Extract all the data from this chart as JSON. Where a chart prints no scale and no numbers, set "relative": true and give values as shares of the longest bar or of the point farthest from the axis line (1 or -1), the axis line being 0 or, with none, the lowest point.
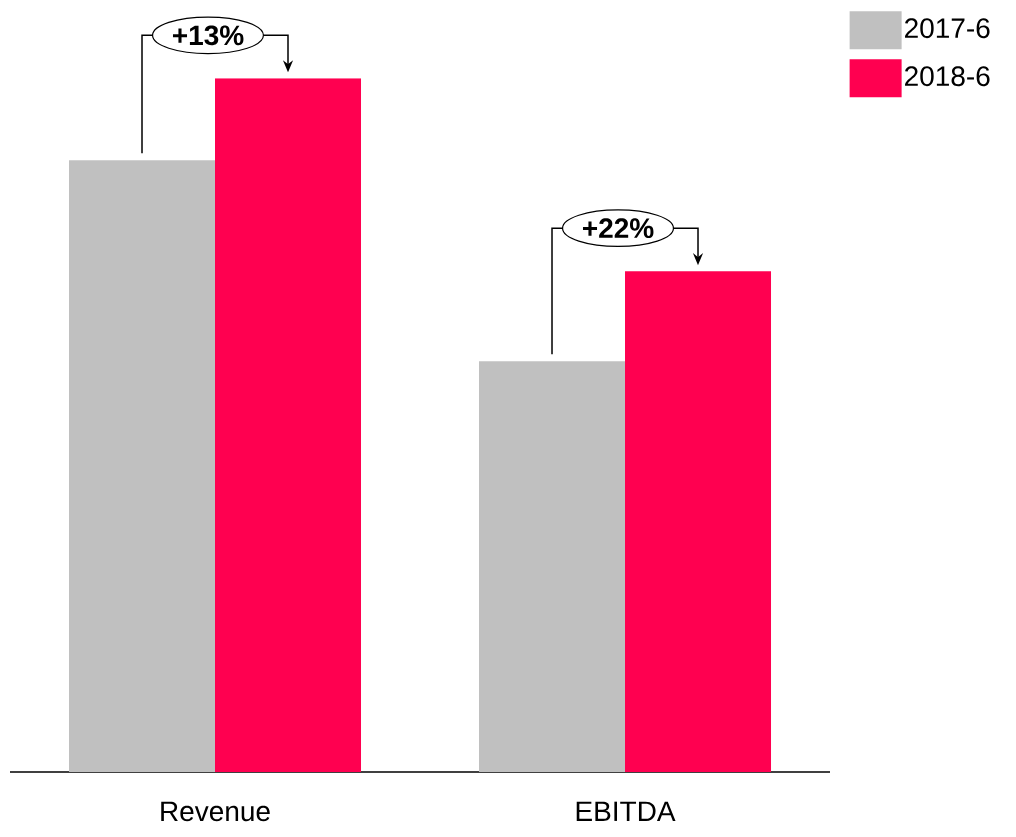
{
  "chart_data": {
    "type": "bar",
    "relative": true,
    "categories": [
      "Revenue",
      "EBITDA"
    ],
    "series": [
      {
        "name": "2017-6",
        "color": "#c0c0c0",
        "values": [
          0.882,
          0.592
        ]
      },
      {
        "name": "2018-6",
        "color": "#ff0050",
        "values": [
          1,
          0.722
        ]
      }
    ],
    "annotations": [
      "+13%",
      "+22%"
    ],
    "legend": "top right"
  }
}
